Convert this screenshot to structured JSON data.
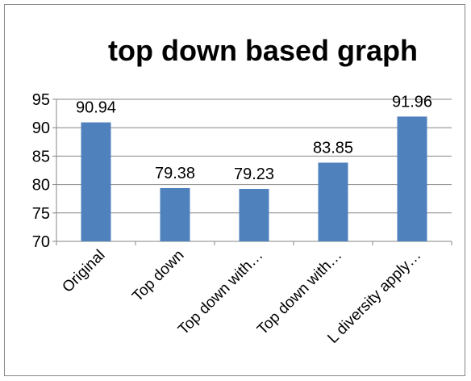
{
  "chart_data": {
    "type": "bar",
    "title": "top down based graph",
    "categories": [
      "Original",
      "Top down",
      "Top down with…",
      "Top down with…",
      "L diversity apply…"
    ],
    "values": [
      90.94,
      79.38,
      79.23,
      83.85,
      91.96
    ],
    "value_labels": [
      "90.94",
      "79.38",
      "79.23",
      "83.85",
      "91.96"
    ],
    "ylim": [
      70,
      95
    ],
    "yticks": [
      70,
      75,
      80,
      85,
      90,
      95
    ],
    "grid": true,
    "legend": "none",
    "xlabel": "",
    "ylabel": "",
    "colors": {
      "bar": "#4f81bd",
      "grid": "#868686",
      "axis": "#868686",
      "text": "#000000"
    }
  }
}
